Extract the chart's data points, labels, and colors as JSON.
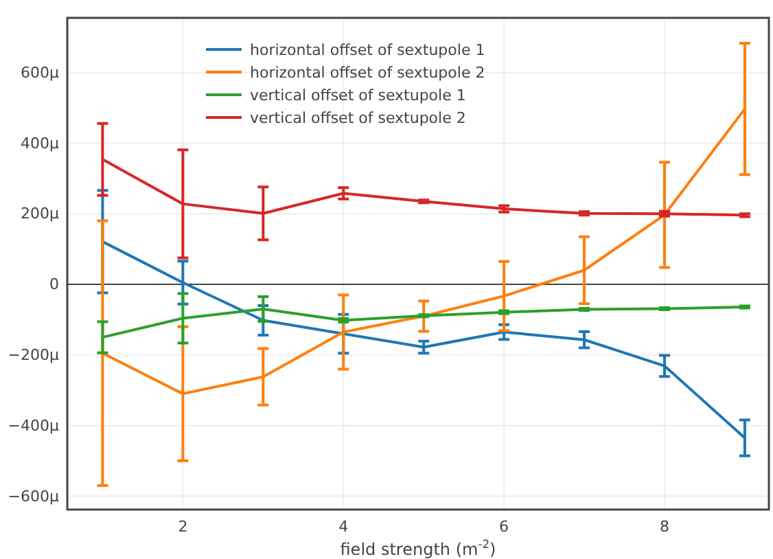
{
  "chart_data": {
    "type": "line",
    "xlabel": "field strength (m$^{-2}$)",
    "x": [
      1,
      2,
      3,
      4,
      5,
      6,
      7,
      8,
      9
    ],
    "xlim": [
      0.56,
      9.3
    ],
    "xticks": [
      2,
      4,
      6,
      8
    ],
    "ylim": [
      -638,
      755
    ],
    "yticks": [
      {
        "value": -600,
        "label": "−600μ"
      },
      {
        "value": -400,
        "label": "−400μ"
      },
      {
        "value": -200,
        "label": "−200μ"
      },
      0,
      {
        "value": 200,
        "label": "200μ"
      },
      {
        "value": 400,
        "label": "400μ"
      },
      {
        "value": 600,
        "label": "600μ"
      }
    ],
    "grid": true,
    "legend": "top left",
    "marker": "none",
    "line_style": "solid",
    "ref_lines": [
      {
        "axis": "y",
        "value": 0,
        "color": "#444444"
      }
    ],
    "series": [
      {
        "name": "horizontal offset of sextupole 1",
        "color": "#1f77b4",
        "values": [
          121,
          5,
          -102,
          -140,
          -178,
          -135,
          -157,
          -231,
          -435
        ],
        "errors": [
          145,
          61,
          42,
          55,
          17,
          21,
          23,
          30,
          51
        ]
      },
      {
        "name": "horizontal offset of sextupole 2",
        "color": "#ff7f0e",
        "values": [
          -195,
          -310,
          -262,
          -135,
          -90,
          -33,
          40,
          197,
          497
        ],
        "errors": [
          375,
          190,
          80,
          105,
          43,
          98,
          95,
          149,
          186
        ]
      },
      {
        "name": "vertical offset of sextupole 1",
        "color": "#2ca02c",
        "values": [
          -150,
          -96,
          -70,
          -102,
          -89,
          -79,
          -71,
          -69,
          -64
        ],
        "errors": [
          44,
          70,
          35,
          5,
          3,
          4,
          3,
          3,
          3
        ]
      },
      {
        "name": "vertical offset of sextupole 2",
        "color": "#d62728",
        "values": [
          354,
          228,
          201,
          258,
          235,
          214,
          201,
          200,
          196
        ],
        "errors": [
          102,
          153,
          75,
          16,
          4,
          9,
          5,
          7,
          4
        ]
      }
    ]
  }
}
